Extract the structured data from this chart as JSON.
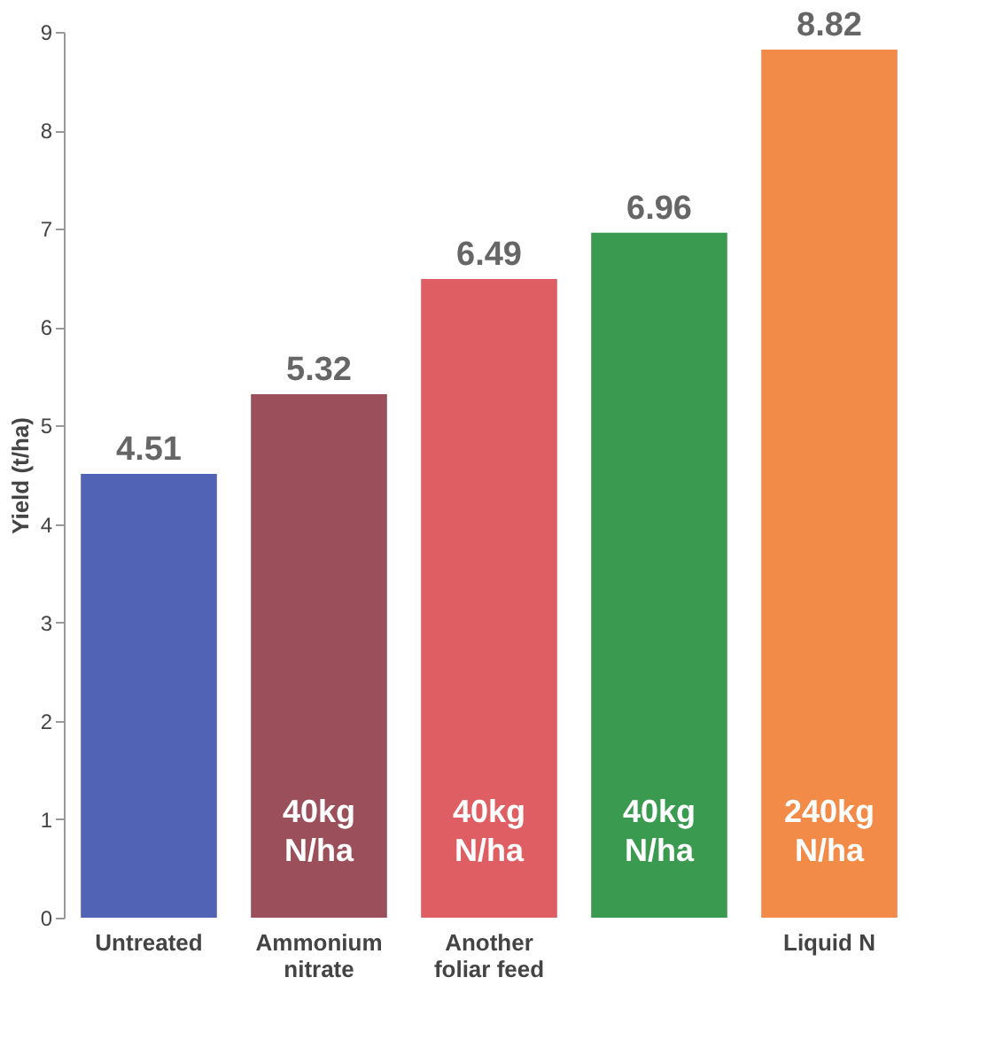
{
  "chart_data": {
    "type": "bar",
    "ylabel": "Yield (t/ha)",
    "categories": [
      "Untreated",
      "Ammonium nitrate",
      "Another foliar feed",
      null,
      "Liquid N"
    ],
    "values": [
      4.51,
      5.32,
      6.49,
      6.96,
      8.82
    ],
    "colors": [
      "#5163b5",
      "#9b4f5a",
      "#de5e63",
      "#3a9a50",
      "#f28a48"
    ],
    "ylim": [
      0,
      9
    ],
    "yticks": [
      0,
      1,
      2,
      3,
      4,
      5,
      6,
      7,
      8,
      9
    ],
    "grid": false,
    "data_labels": true,
    "annotations": [
      "40kg N/ha",
      "40kg N/ha",
      "40kg N/ha",
      "240kg N/ha"
    ]
  }
}
